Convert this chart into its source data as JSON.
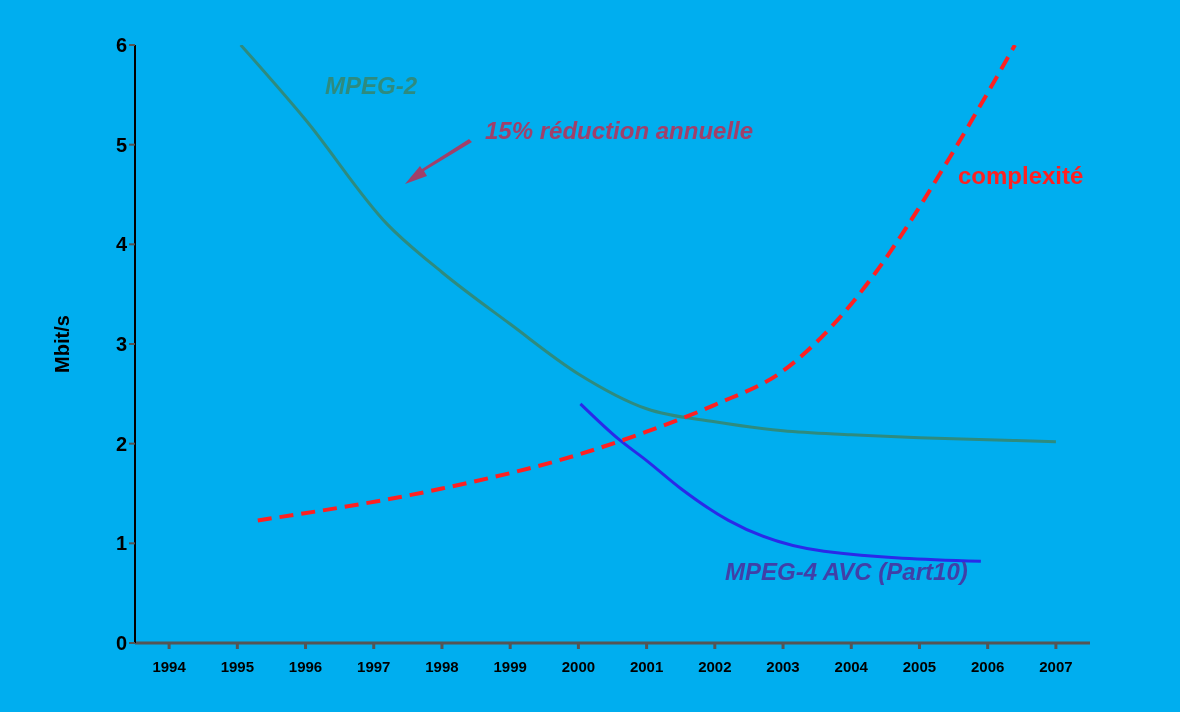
{
  "chart_data": {
    "type": "line",
    "ylabel": "Mbit/s",
    "xlim": [
      1993.5,
      2007.5
    ],
    "xticks": [
      1994,
      1995,
      1996,
      1997,
      1998,
      1999,
      2000,
      2001,
      2002,
      2003,
      2004,
      2005,
      2006,
      2007
    ],
    "ylim": [
      0,
      6
    ],
    "yticks": [
      0,
      1,
      2,
      3,
      4,
      5,
      6
    ],
    "grid": false,
    "legend": false,
    "marker": "none",
    "annotations": [
      "15% réduction annuelle"
    ],
    "series": [
      {
        "name": "MPEG-2",
        "color": "#2e8b7f",
        "line_style": "solid",
        "x": [
          1995.05,
          1996,
          1997.2,
          1998,
          1999,
          2000,
          2001,
          2002,
          2003,
          2004,
          2005,
          2006,
          2007
        ],
        "values": [
          6,
          5.25,
          4.2,
          3.72,
          3.2,
          2.7,
          2.35,
          2.22,
          2.13,
          2.09,
          2.06,
          2.04,
          2.02
        ]
      },
      {
        "name": "MPEG-4 AVC (Part10)",
        "color": "#2a2ae8",
        "line_style": "solid",
        "x": [
          2000.03,
          2000.6,
          2001,
          2001.5,
          2002.2,
          2003.6,
          2005.9
        ],
        "values": [
          2.4,
          2.04,
          1.83,
          1.55,
          1.23,
          0.92,
          0.82
        ]
      },
      {
        "name": "complexité",
        "color": "#ff2020",
        "line_style": "dashed",
        "x": [
          1995.3,
          1998,
          2000,
          2001,
          2002,
          2003,
          2004.35,
          2004.8,
          2005.46,
          2006.4
        ],
        "values": [
          1.23,
          1.55,
          1.89,
          2.12,
          2.39,
          2.73,
          3.71,
          4.16,
          4.89,
          6
        ]
      }
    ]
  }
}
